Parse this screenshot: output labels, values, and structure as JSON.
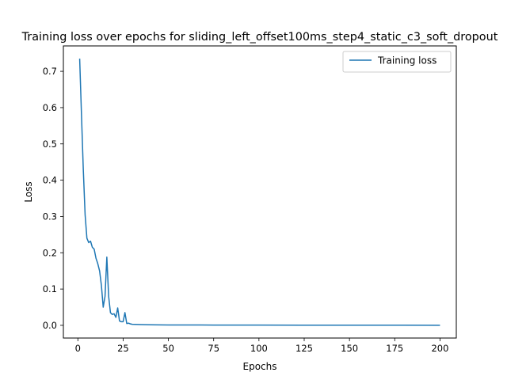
{
  "chart_data": {
    "type": "line",
    "title": "Training loss over epochs for sliding_left_offset100ms_step4_static_c3_soft_dropout",
    "xlabel": "Epochs",
    "ylabel": "Loss",
    "xlim": [
      -8,
      209
    ],
    "ylim": [
      -0.035,
      0.77
    ],
    "xticks": [
      0,
      25,
      50,
      75,
      100,
      125,
      150,
      175,
      200
    ],
    "yticks": [
      0.0,
      0.1,
      0.2,
      0.3,
      0.4,
      0.5,
      0.6,
      0.7
    ],
    "grid": false,
    "legend": {
      "placement": "top-right",
      "entries": [
        "Training loss"
      ]
    },
    "series": [
      {
        "name": "Training loss",
        "color": "#1f77b4",
        "x": [
          1,
          2,
          3,
          4,
          5,
          6,
          7,
          8,
          9,
          10,
          11,
          12,
          13,
          14,
          15,
          16,
          17,
          18,
          19,
          20,
          21,
          22,
          23,
          24,
          25,
          26,
          27,
          28,
          29,
          30,
          35,
          40,
          50,
          60,
          75,
          100,
          125,
          150,
          175,
          200
        ],
        "y": [
          0.735,
          0.58,
          0.43,
          0.305,
          0.24,
          0.228,
          0.232,
          0.215,
          0.21,
          0.185,
          0.17,
          0.15,
          0.11,
          0.05,
          0.08,
          0.188,
          0.08,
          0.035,
          0.03,
          0.032,
          0.022,
          0.048,
          0.012,
          0.01,
          0.01,
          0.035,
          0.005,
          0.006,
          0.004,
          0.003,
          0.002,
          0.0015,
          0.001,
          0.001,
          0.0008,
          0.0006,
          0.0005,
          0.0004,
          0.0004,
          0.0003
        ]
      }
    ]
  }
}
